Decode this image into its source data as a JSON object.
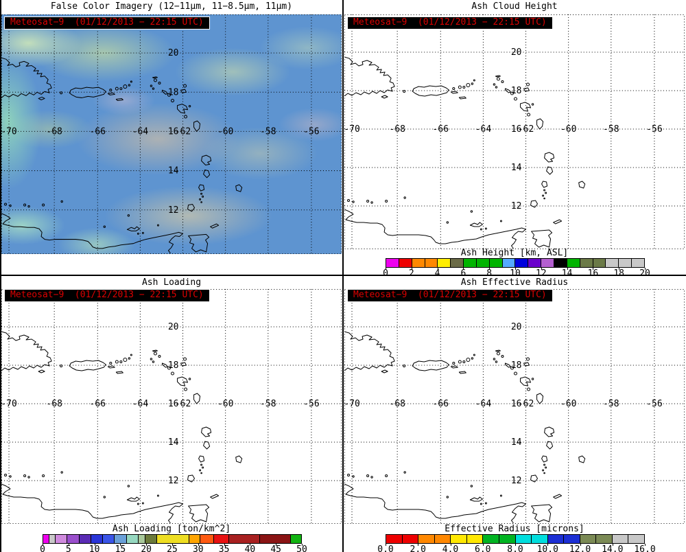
{
  "meta": {
    "stamp": "Meteosat−9  (01/12/2013 − 22:15 UTC)",
    "stamp_color": "#dd0000",
    "stamp_background": "#000000"
  },
  "map": {
    "lat_labels": [
      "20",
      "18",
      "16",
      "14",
      "12"
    ],
    "lon_labels": [
      "-70",
      "-68",
      "-66",
      "-64",
      "-62",
      "-60",
      "-58",
      "-56"
    ]
  },
  "panels": [
    {
      "id": "false-color",
      "title": "False Color Imagery (12−11μm, 11−8.5μm, 11μm)"
    },
    {
      "id": "ash-cloud-height",
      "title": "Ash Cloud Height",
      "colorbar": {
        "label": "Ash Height [km, ASL]",
        "ticks": [
          "0",
          "2",
          "4",
          "6",
          "8",
          "10",
          "12",
          "14",
          "16",
          "18",
          "20"
        ],
        "stops": [
          {
            "color": "#ee00ee",
            "w": 1
          },
          {
            "color": "#ee0000",
            "w": 1
          },
          {
            "color": "#ff8800",
            "w": 1
          },
          {
            "color": "#ff8800",
            "w": 1
          },
          {
            "color": "#ffee00",
            "w": 1
          },
          {
            "color": "#6b6b47",
            "w": 1
          },
          {
            "color": "#00b400",
            "w": 1
          },
          {
            "color": "#00b400",
            "w": 1
          },
          {
            "color": "#00b400",
            "w": 1
          },
          {
            "color": "#55aaff",
            "w": 1
          },
          {
            "color": "#0000dd",
            "w": 1
          },
          {
            "color": "#6a00cc",
            "w": 1
          },
          {
            "color": "#b45fd0",
            "w": 1
          },
          {
            "color": "#000000",
            "w": 1
          },
          {
            "color": "#00b400",
            "w": 1
          },
          {
            "color": "#6b7a47",
            "w": 1
          },
          {
            "color": "#6b7a47",
            "w": 1
          },
          {
            "color": "#c8c8c8",
            "w": 1
          },
          {
            "color": "#c8c8c8",
            "w": 1
          },
          {
            "color": "#c8c8c8",
            "w": 1
          }
        ]
      }
    },
    {
      "id": "ash-loading",
      "title": "Ash Loading",
      "colorbar": {
        "label": "Ash Loading [ton/km^2]",
        "ticks": [
          "0",
          "5",
          "10",
          "15",
          "20",
          "25",
          "30",
          "35",
          "40",
          "45",
          "50"
        ],
        "stops": [
          {
            "color": "#ee00ee",
            "w": 1.2
          },
          {
            "color": "#c8c8c8",
            "w": 1.3
          },
          {
            "color": "#cf8add",
            "w": 2.5
          },
          {
            "color": "#9a4fcc",
            "w": 2.5
          },
          {
            "color": "#5a2bb4",
            "w": 2.5
          },
          {
            "color": "#2a35d8",
            "w": 2.5
          },
          {
            "color": "#3a55e8",
            "w": 2.5
          },
          {
            "color": "#6aa0d8",
            "w": 2.5
          },
          {
            "color": "#96d8c0",
            "w": 2.5
          },
          {
            "color": "#a8c89a",
            "w": 1.4
          },
          {
            "color": "#6b7a3a",
            "w": 2.4
          },
          {
            "color": "#eede22",
            "w": 7.2
          },
          {
            "color": "#ffa500",
            "w": 2.2
          },
          {
            "color": "#ff5a11",
            "w": 3.0
          },
          {
            "color": "#e81111",
            "w": 3.2
          },
          {
            "color": "#a82020",
            "w": 6.8
          },
          {
            "color": "#8a1414",
            "w": 6.8
          },
          {
            "color": "#12b412",
            "w": 2.3
          }
        ]
      }
    },
    {
      "id": "ash-effective-radius",
      "title": "Ash Effective Radius",
      "colorbar": {
        "label": "Effective Radius [microns]",
        "ticks": [
          "0.0",
          "2.0",
          "4.0",
          "6.0",
          "8.0",
          "10.0",
          "12.0",
          "14.0",
          "16.0"
        ],
        "stops": [
          {
            "color": "#ee0000",
            "w": 1
          },
          {
            "color": "#ee0000",
            "w": 1
          },
          {
            "color": "#ff8800",
            "w": 1
          },
          {
            "color": "#ff8800",
            "w": 1
          },
          {
            "color": "#ffe800",
            "w": 1
          },
          {
            "color": "#ffe800",
            "w": 1
          },
          {
            "color": "#00b422",
            "w": 1
          },
          {
            "color": "#00b422",
            "w": 1
          },
          {
            "color": "#00dede",
            "w": 1
          },
          {
            "color": "#00dede",
            "w": 1
          },
          {
            "color": "#1c2fd4",
            "w": 1
          },
          {
            "color": "#1c2fd4",
            "w": 1
          },
          {
            "color": "#7b8a55",
            "w": 1
          },
          {
            "color": "#7b8a55",
            "w": 1
          },
          {
            "color": "#c8c8c8",
            "w": 1
          },
          {
            "color": "#c8c8c8",
            "w": 1
          }
        ]
      }
    }
  ]
}
